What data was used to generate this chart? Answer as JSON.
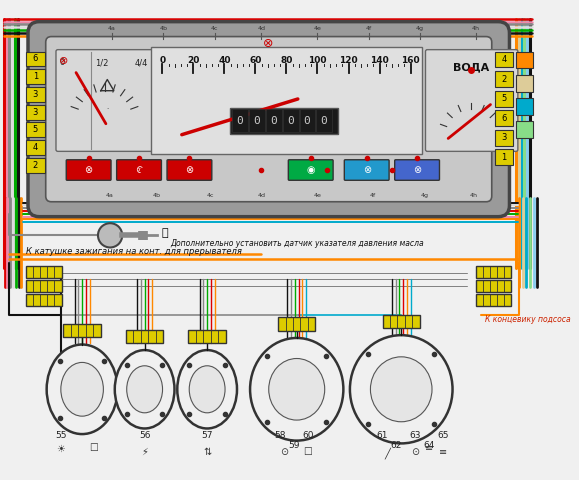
{
  "bg_color": "#f0f0f0",
  "wire_colors": {
    "red": "#dd0000",
    "green": "#00aa00",
    "blue": "#0044cc",
    "orange": "#ff8800",
    "black": "#111111",
    "pink": "#ee88aa",
    "cyan": "#00aacc",
    "yellow": "#dddd00",
    "brown": "#884400",
    "gray": "#888888",
    "white": "#dddddd",
    "violet": "#8800aa",
    "light_green": "#88dd88",
    "light_blue": "#88ccee",
    "beige": "#ddcc99"
  },
  "annotation1": "Дополнительно установить датчик указателя давления масла",
  "annotation2": "К катушке зажигания на конт. для прерывателя",
  "annotation3": "К концевику подсоса",
  "speed_ticks": [
    "0",
    "20",
    "40",
    "60",
    "80",
    "100",
    "120",
    "140",
    "160"
  ],
  "water_label": "ВОДА",
  "odo_text": "000000",
  "fuel_labels": [
    "0",
    "1/2",
    "4/4"
  ],
  "left_conn_nums": [
    "6",
    "1",
    "3",
    "3",
    "5",
    "4",
    "2"
  ],
  "right_conn_nums": [
    "4",
    "2",
    "5",
    "6",
    "3",
    "1"
  ],
  "bottom_nums": [
    "55",
    "56",
    "57",
    "58",
    "59",
    "60",
    "61",
    "62",
    "63",
    "64",
    "65"
  ]
}
